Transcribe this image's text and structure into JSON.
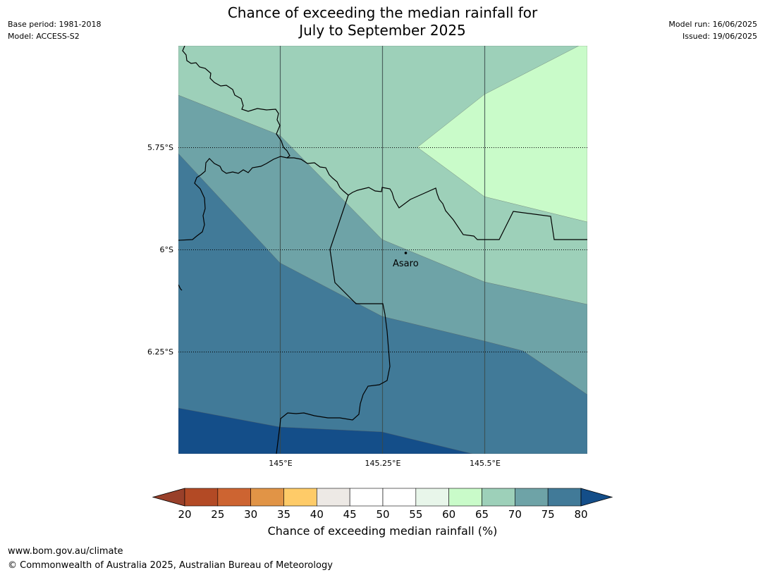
{
  "title": {
    "line1": "Chance of exceeding the median rainfall for",
    "line2": "July to September 2025"
  },
  "meta": {
    "base_period": "Base period: 1981-2018",
    "model": "Model: ACCESS-S2",
    "model_run": "Model run: 16/06/2025",
    "issued": "Issued: 19/06/2025"
  },
  "map": {
    "lat_labels": [
      "5.75°S",
      "6°S",
      "6.25°S"
    ],
    "lon_labels": [
      "145°E",
      "145.25°E",
      "145.5°E"
    ],
    "place": "Asaro",
    "region_colors": {
      "band_65_70": "#9dd0b9",
      "band_60_65": "#c9fbc9",
      "band_70_75": "#6ea3a7",
      "band_75_80": "#417a98",
      "band_80_plus": "#144e89"
    }
  },
  "colorbar": {
    "title": "Chance of exceeding median rainfall (%)",
    "ticks": [
      "20",
      "25",
      "30",
      "35",
      "40",
      "45",
      "50",
      "55",
      "60",
      "65",
      "70",
      "75",
      "80"
    ],
    "under_color": "#99402a",
    "over_color": "#144e89",
    "colors": [
      "#b34a25",
      "#cd6431",
      "#e19446",
      "#fecb68",
      "#ede9e5",
      "#ffffff",
      "#ffffff",
      "#e8f6ea",
      "#c9fbc9",
      "#9dd0b9",
      "#6ea3a7",
      "#417a98"
    ]
  },
  "footer": {
    "url": "www.bom.gov.au/climate",
    "copyright": "© Commonwealth of Australia 2025, Australian Bureau of Meteorology"
  }
}
